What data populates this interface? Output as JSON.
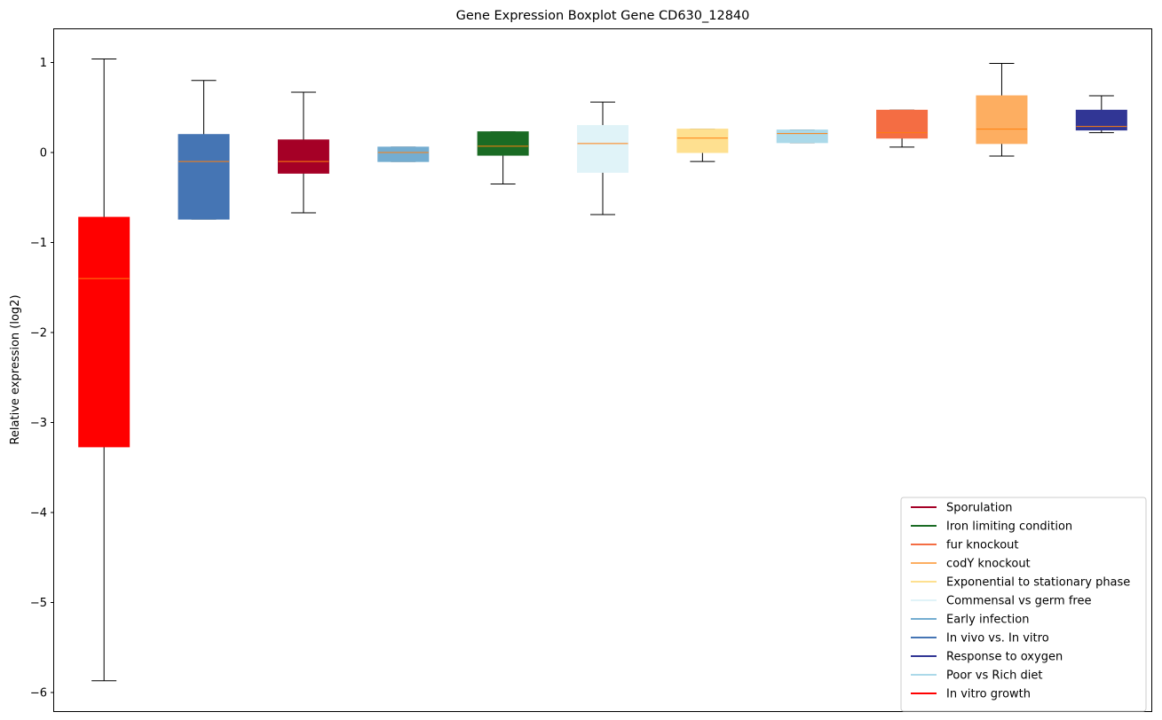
{
  "chart_data": {
    "type": "boxplot",
    "title": "Gene Expression Boxplot Gene CD630_12840",
    "xlabel": "",
    "ylabel": "Relative expression (log2)",
    "ylim": [
      -6.2,
      1.38
    ],
    "yticks": [
      1,
      0,
      -1,
      -2,
      -3,
      -4,
      -5,
      -6
    ],
    "ytick_labels": [
      "1",
      "0",
      "−1",
      "−2",
      "−3",
      "−4",
      "−5",
      "−6"
    ],
    "median_color": "#ff7f0e",
    "series": [
      {
        "name": "In vitro growth",
        "color": "#ff0000",
        "whisker_low": -5.87,
        "q1": -3.27,
        "median": -1.4,
        "q3": -0.72,
        "whisker_high": 1.04
      },
      {
        "name": "In vivo vs. In vitro",
        "color": "#4575b4",
        "whisker_low": -0.74,
        "q1": -0.74,
        "median": -0.1,
        "q3": 0.2,
        "whisker_high": 0.8
      },
      {
        "name": "Sporulation",
        "color": "#a50026",
        "whisker_low": -0.67,
        "q1": -0.23,
        "median": -0.1,
        "q3": 0.14,
        "whisker_high": 0.67
      },
      {
        "name": "Early infection",
        "color": "#74add1",
        "whisker_low": -0.1,
        "q1": -0.1,
        "median": 0.0,
        "q3": 0.06,
        "whisker_high": 0.06
      },
      {
        "name": "Iron limiting condition",
        "color": "#1a6b24",
        "whisker_low": -0.35,
        "q1": -0.03,
        "median": 0.07,
        "q3": 0.23,
        "whisker_high": 0.23
      },
      {
        "name": "Commensal vs germ free",
        "color": "#e0f3f8",
        "whisker_low": -0.69,
        "q1": -0.22,
        "median": 0.1,
        "q3": 0.3,
        "whisker_high": 0.56
      },
      {
        "name": "Exponential to stationary phase",
        "color": "#fee090",
        "whisker_low": -0.1,
        "q1": 0.0,
        "median": 0.16,
        "q3": 0.26,
        "whisker_high": 0.26
      },
      {
        "name": "Poor vs Rich diet",
        "color": "#abd9e9",
        "whisker_low": 0.11,
        "q1": 0.11,
        "median": 0.21,
        "q3": 0.25,
        "whisker_high": 0.25
      },
      {
        "name": "fur knockout",
        "color": "#f46d43",
        "whisker_low": 0.06,
        "q1": 0.16,
        "median": 0.22,
        "q3": 0.47,
        "whisker_high": 0.47
      },
      {
        "name": "codY knockout",
        "color": "#fdae61",
        "whisker_low": -0.04,
        "q1": 0.1,
        "median": 0.26,
        "q3": 0.63,
        "whisker_high": 0.99
      },
      {
        "name": "Response to oxygen",
        "color": "#313695",
        "whisker_low": 0.22,
        "q1": 0.25,
        "median": 0.29,
        "q3": 0.47,
        "whisker_high": 0.63
      }
    ],
    "legend": {
      "placement": "lower-right",
      "entries": [
        {
          "label": "Sporulation",
          "color": "#a50026"
        },
        {
          "label": "Iron limiting condition",
          "color": "#1a6b24"
        },
        {
          "label": "fur knockout",
          "color": "#f46d43"
        },
        {
          "label": "codY knockout",
          "color": "#fdae61"
        },
        {
          "label": "Exponential to stationary phase",
          "color": "#fee090"
        },
        {
          "label": "Commensal vs germ free",
          "color": "#e0f3f8"
        },
        {
          "label": "Early infection",
          "color": "#74add1"
        },
        {
          "label": "In vivo vs. In vitro",
          "color": "#4575b4"
        },
        {
          "label": "Response to oxygen",
          "color": "#313695"
        },
        {
          "label": "Poor vs Rich diet",
          "color": "#abd9e9"
        },
        {
          "label": "In vitro growth",
          "color": "#ff0000"
        }
      ]
    }
  }
}
